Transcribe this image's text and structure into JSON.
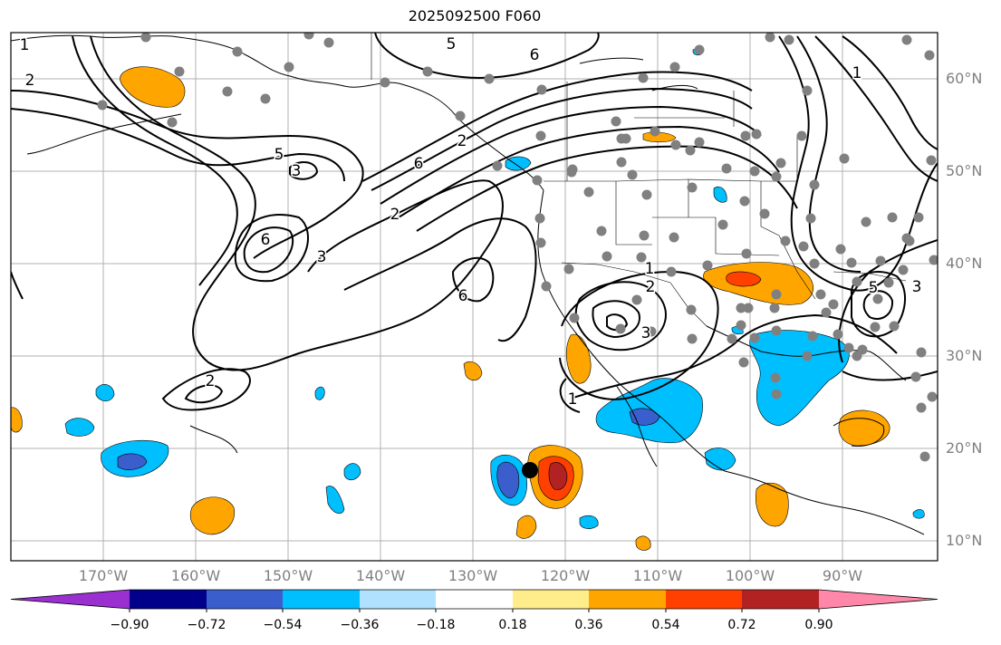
{
  "title": "2025092500 F060",
  "lat_labels": [
    "60°N",
    "50°N",
    "40°N",
    "30°N",
    "20°N",
    "10°N"
  ],
  "lon_labels": [
    "170°W",
    "160°W",
    "150°W",
    "140°W",
    "130°W",
    "120°W",
    "110°W",
    "100°W",
    "90°W"
  ],
  "contour_labels": [
    "5",
    "6",
    "1",
    "2",
    "5",
    "3",
    "6",
    "6",
    "2",
    "3",
    "6",
    "2",
    "1",
    "2",
    "3",
    "1",
    "2",
    "1",
    "3",
    "5"
  ],
  "colorbar": {
    "tick_labels": [
      "−0.90",
      "−0.72",
      "−0.54",
      "−0.36",
      "−0.18",
      "0.18",
      "0.36",
      "0.54",
      "0.72",
      "0.90"
    ],
    "colors": [
      "#9b30d0",
      "#00008b",
      "#3a5fcd",
      "#00bfff",
      "#b0e2ff",
      "#ffffff",
      "#ffec8b",
      "#ffa500",
      "#ff4000",
      "#b22222",
      "#ff88aa"
    ]
  },
  "style": {
    "contour_color": "#000000",
    "station_color": "#808080",
    "grid_color": "#b0b0b0",
    "marker_color": "#000000"
  }
}
